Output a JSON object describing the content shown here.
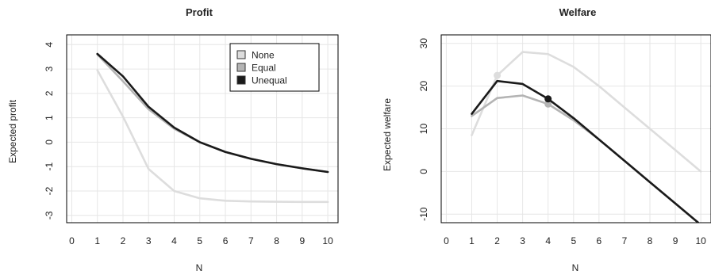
{
  "colors": {
    "None": "#dddddd",
    "Equal": "#b4b4b4",
    "Unequal": "#1a1a1a",
    "grid": "#e6e6e6",
    "frame": "#000000"
  },
  "chart_data": [
    {
      "type": "line",
      "title": "Profit",
      "xlabel": "N",
      "ylabel": "Expected profit",
      "xlim": [
        -0.2,
        10.4
      ],
      "ylim": [
        -3.3,
        4.4
      ],
      "xticks": [
        "0",
        "1",
        "2",
        "3",
        "4",
        "5",
        "6",
        "7",
        "8",
        "9",
        "10"
      ],
      "yticks": [
        "-3",
        "-2",
        "-1",
        "0",
        "1",
        "2",
        "3",
        "4"
      ],
      "grid": true,
      "legend": {
        "position": "top-right",
        "entries": [
          "None",
          "Equal",
          "Unequal"
        ]
      },
      "series": [
        {
          "name": "None",
          "x": [
            1,
            2,
            3,
            4,
            5,
            6,
            7,
            8,
            9,
            10
          ],
          "y": [
            2.95,
            1.05,
            -1.1,
            -2.0,
            -2.3,
            -2.4,
            -2.43,
            -2.44,
            -2.45,
            -2.45
          ]
        },
        {
          "name": "Equal",
          "x": [
            1,
            2,
            3,
            4,
            5,
            6,
            7,
            8,
            9,
            10
          ],
          "y": [
            3.6,
            2.5,
            1.35,
            0.55,
            0.0,
            -0.4,
            -0.68,
            -0.9,
            -1.07,
            -1.22
          ]
        },
        {
          "name": "Unequal",
          "x": [
            1,
            2,
            3,
            4,
            5,
            6,
            7,
            8,
            9,
            10
          ],
          "y": [
            3.62,
            2.7,
            1.45,
            0.6,
            0.0,
            -0.4,
            -0.68,
            -0.9,
            -1.07,
            -1.22
          ]
        }
      ]
    },
    {
      "type": "line",
      "title": "Welfare",
      "xlabel": "N",
      "ylabel": "Expected welfare",
      "xlim": [
        -0.2,
        10.4
      ],
      "ylim": [
        -12,
        32
      ],
      "xticks": [
        "0",
        "1",
        "2",
        "3",
        "4",
        "5",
        "6",
        "7",
        "8",
        "9",
        "10"
      ],
      "yticks": [
        "-10",
        "0",
        "10",
        "20",
        "30"
      ],
      "grid": true,
      "series": [
        {
          "name": "None",
          "x": [
            1,
            2,
            3,
            4,
            5,
            6,
            7,
            8,
            9,
            10
          ],
          "y": [
            8.5,
            22.5,
            28.0,
            27.5,
            24.5,
            20.0,
            15.0,
            10.0,
            5.0,
            0.0
          ],
          "marker_at": 2
        },
        {
          "name": "Equal",
          "x": [
            1,
            2,
            3,
            4,
            5,
            6,
            7,
            8,
            9,
            10
          ],
          "y": [
            13.0,
            17.2,
            17.8,
            15.8,
            12.0,
            7.5,
            2.5,
            -2.5,
            -7.5,
            -12.5
          ],
          "marker_at": 4
        },
        {
          "name": "Unequal",
          "x": [
            1,
            2,
            3,
            4,
            5,
            6,
            7,
            8,
            9,
            10
          ],
          "y": [
            13.5,
            21.2,
            20.5,
            17.0,
            12.5,
            7.5,
            2.5,
            -2.5,
            -7.5,
            -12.5
          ],
          "marker_at": 4
        }
      ]
    }
  ]
}
